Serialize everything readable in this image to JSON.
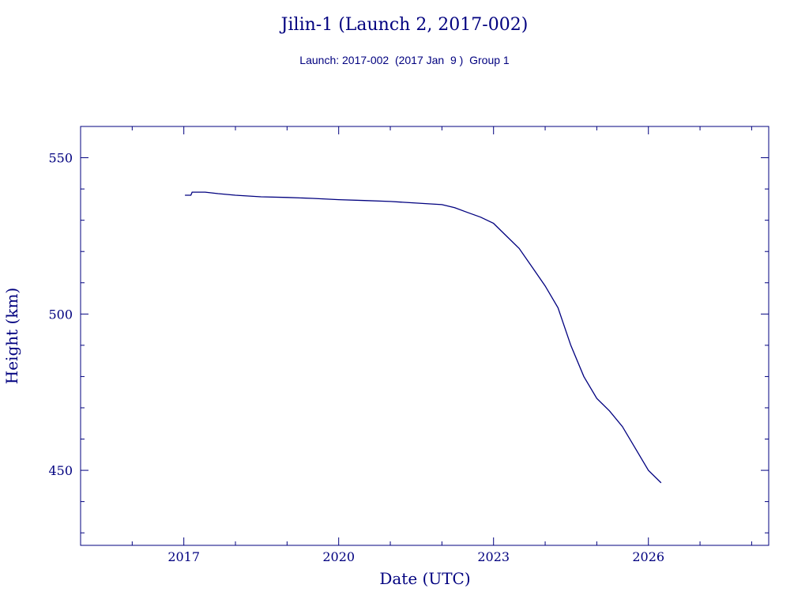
{
  "chart_data": {
    "type": "line",
    "title": "Jilin-1 (Launch 2, 2017-002)",
    "subtitle": "Launch: 2017-002  (2017 Jan  9 )  Group 1",
    "xlabel": "Date (UTC)",
    "ylabel": "Height (km)",
    "xlim": [
      "2015-01-01",
      "2028-05-01"
    ],
    "ylim": [
      426,
      560
    ],
    "x_ticks": [
      "2017",
      "2020",
      "2023",
      "2026"
    ],
    "y_ticks": [
      450,
      500,
      550
    ],
    "grid": false,
    "color": "#00007f",
    "series": [
      {
        "x": [
          "2017-01-09",
          "2017-02-01",
          "2017-02-20",
          "2017-03-01",
          "2017-06-01",
          "2017-09-01",
          "2018-01-01",
          "2018-07-01",
          "2019-01-01",
          "2019-07-01",
          "2020-01-01",
          "2020-07-01",
          "2021-01-01",
          "2021-07-01",
          "2022-01-01",
          "2022-04-01",
          "2022-07-01",
          "2022-10-01",
          "2023-01-01",
          "2023-04-01",
          "2023-07-01",
          "2023-10-01",
          "2024-01-01",
          "2024-04-01",
          "2024-07-01",
          "2024-10-01",
          "2025-01-01",
          "2025-04-01",
          "2025-07-01",
          "2025-10-01",
          "2026-01-01",
          "2026-04-01"
        ],
        "y": [
          538,
          538,
          538,
          539,
          539,
          538.5,
          538,
          537.5,
          537.3,
          537,
          536.6,
          536.3,
          536,
          535.5,
          535,
          534,
          532.5,
          531,
          529,
          525,
          521,
          515,
          509,
          502,
          490,
          480,
          473,
          469,
          464,
          457,
          450,
          446
        ]
      }
    ]
  }
}
